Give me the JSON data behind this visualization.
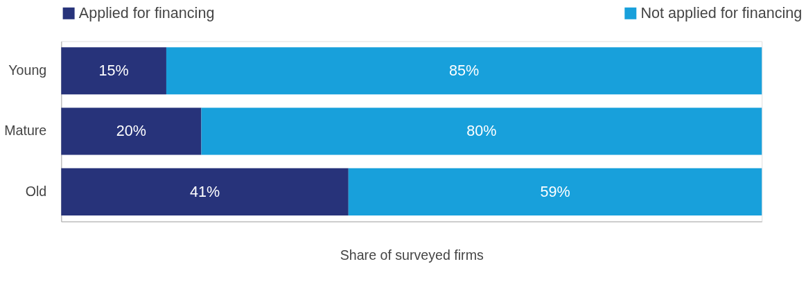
{
  "chart_data": {
    "type": "bar",
    "orientation": "horizontal",
    "stacked": true,
    "xlabel": "Share of surveyed firms",
    "categories": [
      "Young",
      "Mature",
      "Old"
    ],
    "series": [
      {
        "name": "Applied for financing",
        "color": "#27337a",
        "values": [
          15,
          20,
          41
        ],
        "value_labels": [
          "15%",
          "20%",
          "41%"
        ]
      },
      {
        "name": "Not applied for financing",
        "color": "#18a0db",
        "values": [
          85,
          80,
          59
        ],
        "value_labels": [
          "85%",
          "80%",
          "59%"
        ]
      }
    ],
    "xlim": [
      0,
      100
    ],
    "tick_labels": "y",
    "legend": "top"
  }
}
